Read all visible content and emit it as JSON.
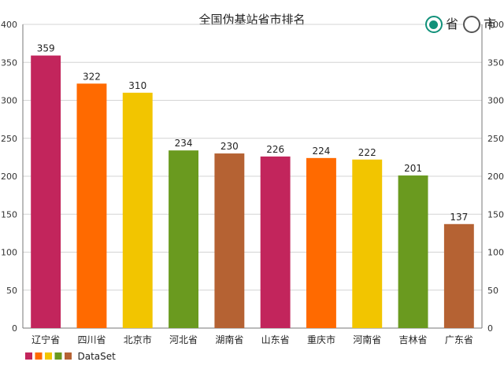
{
  "title": "全国伪基站省市排名",
  "toggle": {
    "options": [
      {
        "label": "省",
        "checked": true
      },
      {
        "label": "市",
        "checked": false
      }
    ],
    "accent": "#11917a"
  },
  "chart_data": {
    "type": "bar",
    "categories": [
      "辽宁省",
      "四川省",
      "北京市",
      "河北省",
      "湖南省",
      "山东省",
      "重庆市",
      "河南省",
      "吉林省",
      "广东省"
    ],
    "values": [
      359,
      322,
      310,
      234,
      230,
      226,
      224,
      222,
      201,
      137
    ],
    "colors": [
      "#c2255c",
      "#ff6a00",
      "#f2c500",
      "#6a9a1f",
      "#b56233",
      "#c2255c",
      "#ff6a00",
      "#f2c500",
      "#6a9a1f",
      "#b56233"
    ],
    "ylim": [
      0,
      400
    ],
    "yticks": [
      0,
      50,
      100,
      150,
      200,
      250,
      300,
      350,
      400
    ],
    "grid": true,
    "dual_y_axis": true,
    "legend": {
      "label": "DataSet",
      "placement": "bottom-left"
    }
  }
}
